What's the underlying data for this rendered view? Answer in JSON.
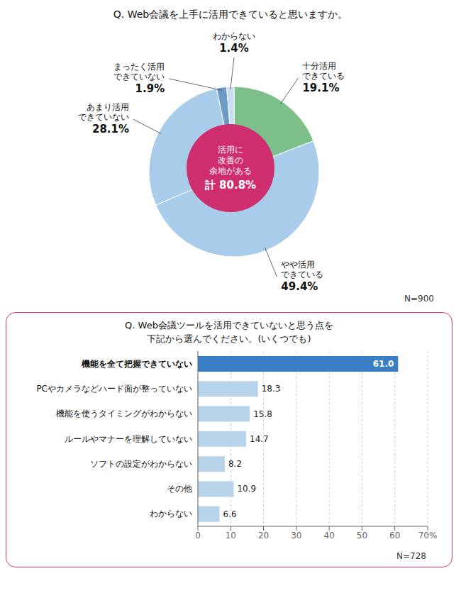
{
  "chart_data": [
    {
      "type": "pie",
      "title": "Q. Web会議を上手に活用できていると思いますか。",
      "categories": [
        "十分活用\nできている",
        "やや活用\nできている",
        "あまり活用\nできていない",
        "まったく活用\nできていない",
        "わからない"
      ],
      "values": [
        19.1,
        49.4,
        28.1,
        1.9,
        1.4
      ],
      "value_labels": [
        "19.1%",
        "49.4%",
        "28.1%",
        "1.9%",
        "1.4%"
      ],
      "data_labels": true,
      "colors": [
        "#7CBF8A",
        "#A8CCEA",
        "#A8CCEA",
        "#6B9AC4",
        "#C8DEF0"
      ],
      "annotations": [
        "活用に",
        "改善の",
        "余地がある",
        "計 80.8%",
        "N=900"
      ]
    },
    {
      "type": "bar",
      "orientation": "horizontal",
      "title": "Q. Web会議ツールを活用できていないと思う点を",
      "subtitle": "下記から選んでください。(いくつでも)",
      "categories": [
        "機能を全て把握できていない",
        "PCやカメラなどハード面が整っていない",
        "機能を使うタイミングがわからない",
        "ルールやマナーを理解していない",
        "ソフトの設定がわからない",
        "その他",
        "わからない"
      ],
      "values": [
        61.0,
        18.3,
        15.8,
        14.7,
        8.2,
        10.9,
        6.6
      ],
      "value_labels": [
        "61.0",
        "18.3",
        "15.8",
        "14.7",
        "8.2",
        "10.9",
        "6.6"
      ],
      "data_labels": true,
      "colors": [
        "#3A7EC6",
        "#B8D4EA",
        "#B8D4EA",
        "#B8D4EA",
        "#B8D4EA",
        "#B8D4EA",
        "#B8D4EA"
      ],
      "xlim": [
        0,
        70
      ],
      "xticks": [
        0,
        10,
        20,
        30,
        40,
        50,
        60,
        {
          "value": 70,
          "label": "70%"
        }
      ],
      "grid": true,
      "annotations": [
        "N=728"
      ]
    }
  ]
}
